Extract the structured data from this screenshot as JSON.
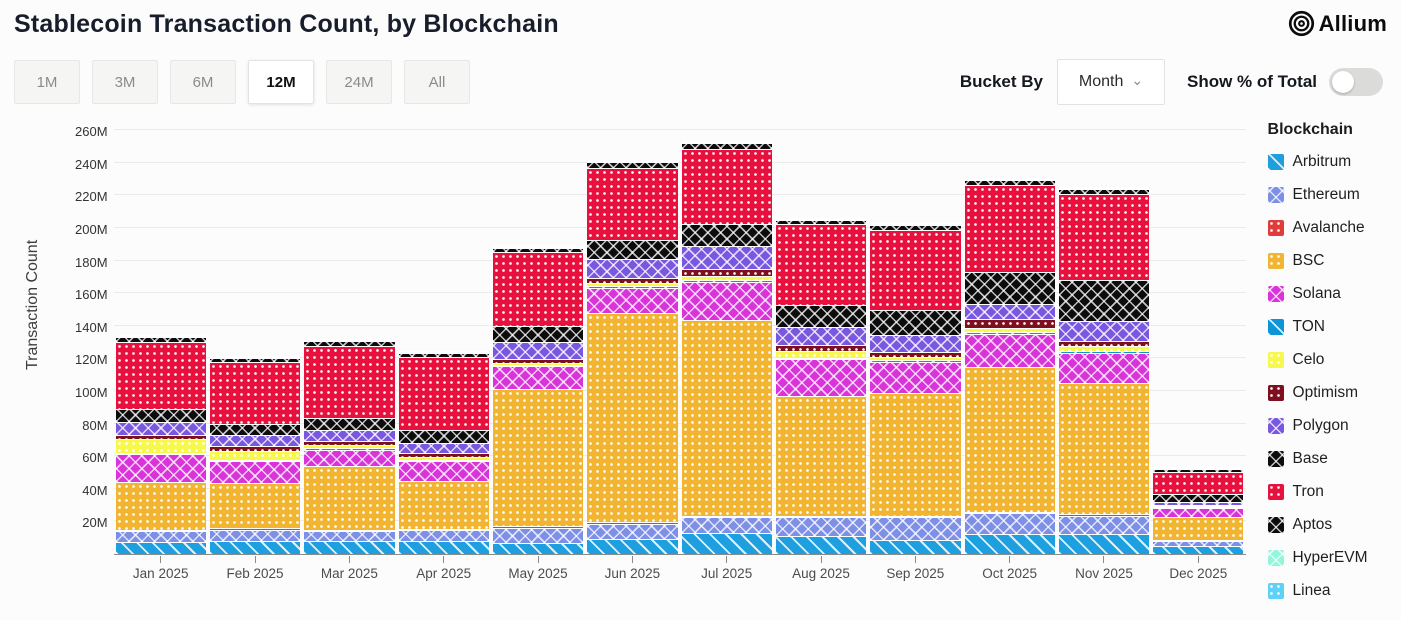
{
  "header": {
    "title": "Stablecoin Transaction Count, by Blockchain",
    "logo_text": "Allium"
  },
  "controls": {
    "ranges": [
      "1M",
      "3M",
      "6M",
      "12M",
      "24M",
      "All"
    ],
    "active_range": "12M",
    "bucket_by_label": "Bucket By",
    "bucket_value": "Month",
    "show_pct_label": "Show % of Total",
    "show_pct_state": "off"
  },
  "legend": {
    "header": "Blockchain"
  },
  "chart_data": {
    "type": "bar",
    "stacked": true,
    "title": "Stablecoin Transaction Count, by Blockchain",
    "xlabel": "",
    "ylabel": "Transaction Count",
    "unit": "M",
    "ylim": [
      0,
      270
    ],
    "y_ticks": [
      20,
      40,
      60,
      80,
      100,
      120,
      140,
      160,
      180,
      200,
      220,
      240,
      260
    ],
    "grid": true,
    "legend_position": "right",
    "categories": [
      "Jan 2025",
      "Feb 2025",
      "Mar 2025",
      "Apr 2025",
      "May 2025",
      "Jun 2025",
      "Jul 2025",
      "Aug 2025",
      "Sep 2025",
      "Oct 2025",
      "Nov 2025",
      "Dec 2025"
    ],
    "series": [
      {
        "name": "Arbitrum",
        "color": "#1e9fe0",
        "pattern": "diag",
        "values": [
          7.5,
          8,
          8,
          8,
          7,
          9,
          13,
          11,
          8.5,
          12,
          12,
          5
        ]
      },
      {
        "name": "Ethereum",
        "color": "#7e8fe6",
        "pattern": "cross",
        "values": [
          6.5,
          7,
          6,
          6.5,
          9,
          9.5,
          9.5,
          11.5,
          14,
          13,
          11.5,
          3
        ]
      },
      {
        "name": "Avalanche",
        "color": "#e23b3b",
        "pattern": "dots",
        "values": [
          0.8,
          0.8,
          0.8,
          0.8,
          1,
          1,
          1,
          1,
          1,
          1,
          1,
          0.3
        ]
      },
      {
        "name": "BSC",
        "color": "#f2b531",
        "pattern": "dots",
        "values": [
          29.5,
          27.5,
          39.5,
          29.5,
          84,
          128.5,
          120,
          73.5,
          75.5,
          89,
          80.5,
          14
        ]
      },
      {
        "name": "Solana",
        "color": "#d934d9",
        "pattern": "cross",
        "values": [
          17,
          13.5,
          9.5,
          12,
          14.5,
          15.5,
          23.5,
          22.5,
          19,
          20,
          18.5,
          5.5
        ]
      },
      {
        "name": "TON",
        "color": "#0e95d6",
        "pattern": "diag",
        "values": [
          1,
          1,
          1,
          1,
          0.7,
          0.7,
          1.2,
          1,
          1,
          1,
          1,
          0.3
        ]
      },
      {
        "name": "Celo",
        "color": "#f7f84c",
        "pattern": "dots",
        "values": [
          8,
          5.5,
          2,
          1.5,
          1,
          2,
          2.5,
          4,
          2,
          2.5,
          3,
          0.5
        ]
      },
      {
        "name": "Optimism",
        "color": "#7e0f1e",
        "pattern": "dots",
        "values": [
          3,
          3,
          2.5,
          2.5,
          2.5,
          3.5,
          4,
          4,
          3,
          5.5,
          3,
          0.7
        ]
      },
      {
        "name": "Polygon",
        "color": "#7a57e0",
        "pattern": "cross",
        "values": [
          8,
          7,
          7,
          6.5,
          10.5,
          11.5,
          14.5,
          11,
          10.5,
          9.5,
          12.5,
          2
        ]
      },
      {
        "name": "Base",
        "color": "#0c0c0c",
        "pattern": "cross",
        "values": [
          8,
          6.5,
          7.5,
          8,
          9.5,
          11.5,
          13.5,
          13.5,
          15.5,
          19.5,
          25,
          5
        ]
      },
      {
        "name": "Tron",
        "color": "#e8103c",
        "pattern": "dots",
        "values": [
          41,
          38,
          44,
          44.5,
          45.5,
          44.5,
          46,
          49.5,
          49,
          53.5,
          53,
          13.5
        ]
      },
      {
        "name": "Aptos",
        "color": "#0c0c0c",
        "pattern": "cross",
        "values": [
          3,
          2.5,
          3,
          2.5,
          2.7,
          3.3,
          3.5,
          2.5,
          3,
          3,
          3,
          1.5
        ]
      },
      {
        "name": "HyperEVM",
        "color": "#91f6db",
        "pattern": "cross",
        "values": [
          0.3,
          0.2,
          0.2,
          0.2,
          0.3,
          0.3,
          0.3,
          0.3,
          0.3,
          0.3,
          0.3,
          0.1
        ]
      },
      {
        "name": "Linea",
        "color": "#5fd0f6",
        "pattern": "dots",
        "values": [
          0.3,
          0.2,
          0.2,
          0.2,
          0.3,
          0.3,
          0.3,
          0.3,
          0.3,
          0.3,
          0.3,
          0.1
        ]
      }
    ]
  }
}
